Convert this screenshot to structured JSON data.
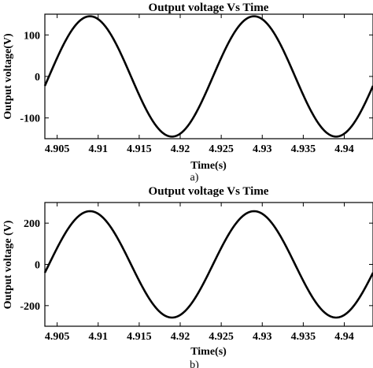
{
  "chart_data": [
    {
      "type": "line",
      "title": "Output voltage Vs Time",
      "xlabel": "Time(s)",
      "ylabel": "Output voltage(V)",
      "caption": "a)",
      "xlim": [
        4.9035,
        4.9435
      ],
      "ylim": [
        -150,
        150
      ],
      "xticks": [
        4.905,
        4.91,
        4.915,
        4.92,
        4.925,
        4.93,
        4.935,
        4.94
      ],
      "xtick_labels": [
        "4.905",
        "4.91",
        "4.915",
        "4.92",
        "4.925",
        "4.93",
        "4.935",
        "4.94"
      ],
      "yticks": [
        -100,
        0,
        100
      ],
      "ytick_labels": [
        "-100",
        "0",
        "100"
      ],
      "grid": false,
      "series": [
        {
          "amplitude": 145,
          "frequency_hz": 50,
          "zero_crossing_rising": 4.904,
          "x_range": [
            4.9035,
            4.9435
          ]
        }
      ]
    },
    {
      "type": "line",
      "title": "Output voltage Vs Time",
      "xlabel": "Time(s)",
      "ylabel": "Output voltage (V)",
      "caption": "b)",
      "xlim": [
        4.9035,
        4.9435
      ],
      "ylim": [
        -300,
        300
      ],
      "xticks": [
        4.905,
        4.91,
        4.915,
        4.92,
        4.925,
        4.93,
        4.935,
        4.94
      ],
      "xtick_labels": [
        "4.905",
        "4.91",
        "4.915",
        "4.92",
        "4.925",
        "4.93",
        "4.935",
        "4.94"
      ],
      "yticks": [
        -200,
        0,
        200
      ],
      "ytick_labels": [
        "-200",
        "0",
        "200"
      ],
      "grid": false,
      "series": [
        {
          "amplitude": 258,
          "frequency_hz": 50,
          "zero_crossing_rising": 4.904,
          "x_range": [
            4.9035,
            4.9435
          ]
        }
      ]
    }
  ]
}
